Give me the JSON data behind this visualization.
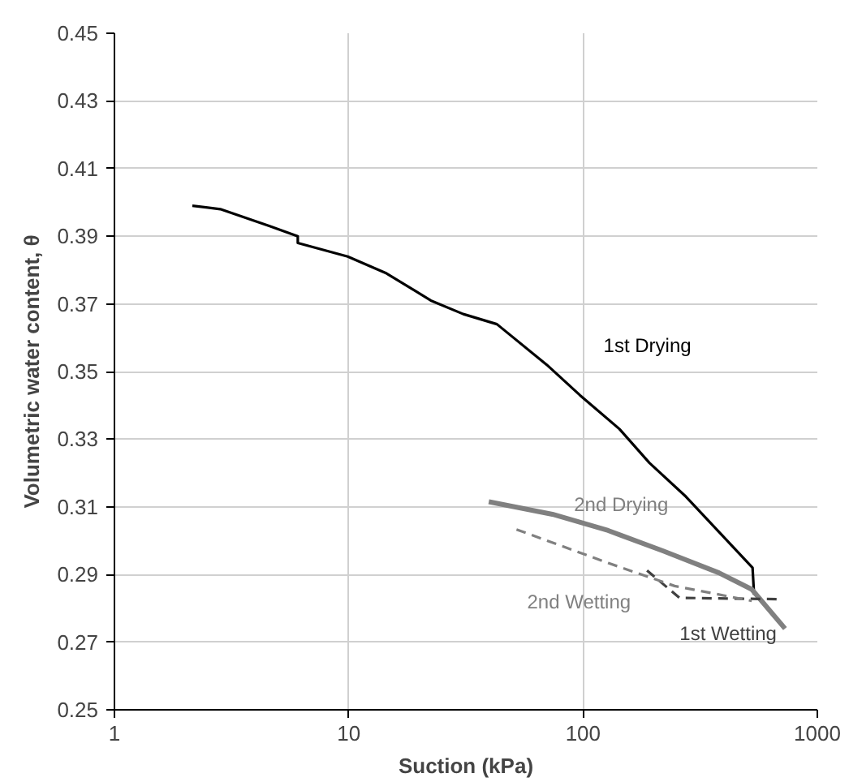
{
  "chart_data": {
    "type": "line",
    "xlabel": "Suction (kPa)",
    "ylabel": "Volumetric water content, θ",
    "log": "x",
    "xlim": [
      1,
      1000
    ],
    "xticks": [
      1,
      10,
      100,
      1000
    ],
    "ylim": [
      0.25,
      0.45
    ],
    "yticks": [
      {
        "value": 0.25,
        "label": "0.25"
      },
      {
        "value": 0.27,
        "label": "0.27"
      },
      {
        "value": 0.29,
        "label": "0.29"
      },
      {
        "value": 0.31,
        "label": "0.31"
      },
      {
        "value": 0.33,
        "label": "0.33"
      },
      {
        "value": 0.35,
        "label": "0.35"
      },
      {
        "value": 0.37,
        "label": "0.37"
      },
      {
        "value": 0.39,
        "label": "0.39"
      },
      {
        "value": 0.41,
        "label": "0.41"
      },
      {
        "value": 0.43,
        "label": "0.43"
      },
      {
        "value": 0.45,
        "label": "0.45"
      }
    ],
    "grid": true,
    "legend": false,
    "marker": "none",
    "series": [
      {
        "name": "1st Drying",
        "color": "#000000",
        "line_style": "solid",
        "x": [
          2.15,
          2.83,
          4.6,
          6.06,
          6.06,
          9.9,
          14.5,
          22.4,
          30.8,
          42.9,
          70,
          97,
          143,
          192,
          275,
          529,
          537
        ],
        "values": [
          0.399,
          0.398,
          0.393,
          0.39,
          0.388,
          0.384,
          0.379,
          0.371,
          0.367,
          0.364,
          0.352,
          0.343,
          0.333,
          0.323,
          0.313,
          0.292,
          0.284
        ]
      },
      {
        "name": "2nd Drying",
        "color": "#808080",
        "line_style": "solid",
        "x": [
          39.6,
          74,
          128,
          219,
          380,
          525,
          728
        ],
        "values": [
          0.3115,
          0.3078,
          0.303,
          0.297,
          0.2905,
          0.2856,
          0.274
        ]
      },
      {
        "name": "1st Wetting",
        "color": "#404040",
        "line_style": "dashed",
        "x": [
          670,
          258,
          186
        ],
        "values": [
          0.2827,
          0.2831,
          0.2914
        ]
      },
      {
        "name": "2nd Wetting",
        "color": "#808080",
        "line_style": "dashed",
        "x": [
          52,
          128,
          246,
          525
        ],
        "values": [
          0.3033,
          0.2934,
          0.2866,
          0.2822
        ]
      }
    ]
  }
}
